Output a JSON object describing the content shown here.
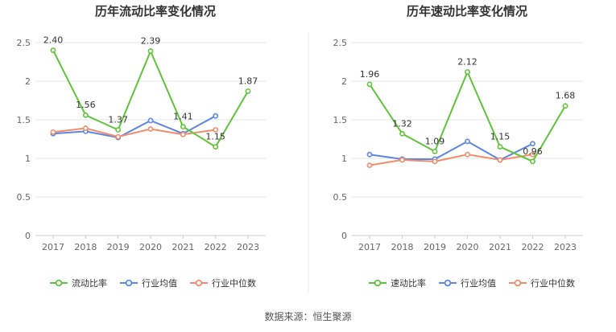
{
  "footer": {
    "source": "数据来源：恒生聚源"
  },
  "colors": {
    "main_line": "#5fc43a",
    "industry_avg": "#5b86e5",
    "industry_median": "#f28c6b",
    "axis_text": "#666666",
    "grid": "#e6e6e6",
    "title": "#333333"
  },
  "chart_data": [
    {
      "type": "line",
      "title": "历年流动比率变化情况",
      "categories": [
        "2017",
        "2018",
        "2019",
        "2020",
        "2021",
        "2022",
        "2023"
      ],
      "ylim": [
        0,
        2.5
      ],
      "yticks": [
        "0",
        "0.5",
        "1",
        "1.5",
        "2",
        "2.5"
      ],
      "grid": true,
      "legend_position": "bottom",
      "series": [
        {
          "name": "流动比率",
          "color": "#5fc43a",
          "values": [
            2.4,
            1.56,
            1.37,
            2.39,
            1.41,
            1.15,
            1.87
          ],
          "labels": [
            "2.40",
            "1.56",
            "1.37",
            "2.39",
            "1.41",
            "1.15",
            "1.87"
          ]
        },
        {
          "name": "行业均值",
          "color": "#5b86e5",
          "values": [
            1.32,
            1.35,
            1.27,
            1.49,
            1.32,
            1.55,
            null
          ]
        },
        {
          "name": "行业中位数",
          "color": "#f28c6b",
          "values": [
            1.34,
            1.39,
            1.28,
            1.38,
            1.31,
            1.37,
            null
          ]
        }
      ]
    },
    {
      "type": "line",
      "title": "历年速动比率变化情况",
      "categories": [
        "2017",
        "2018",
        "2019",
        "2020",
        "2021",
        "2022",
        "2023"
      ],
      "ylim": [
        0,
        2.5
      ],
      "yticks": [
        "0",
        "0.5",
        "1",
        "1.5",
        "2",
        "2.5"
      ],
      "grid": true,
      "legend_position": "bottom",
      "series": [
        {
          "name": "速动比率",
          "color": "#5fc43a",
          "values": [
            1.96,
            1.32,
            1.09,
            2.12,
            1.15,
            0.96,
            1.68
          ],
          "labels": [
            "1.96",
            "1.32",
            "1.09",
            "2.12",
            "1.15",
            "0.96",
            "1.68"
          ]
        },
        {
          "name": "行业均值",
          "color": "#5b86e5",
          "values": [
            1.05,
            0.99,
            0.99,
            1.22,
            0.98,
            1.19,
            null
          ]
        },
        {
          "name": "行业中位数",
          "color": "#f28c6b",
          "values": [
            0.91,
            0.98,
            0.96,
            1.05,
            0.98,
            1.05,
            null
          ]
        }
      ]
    }
  ]
}
